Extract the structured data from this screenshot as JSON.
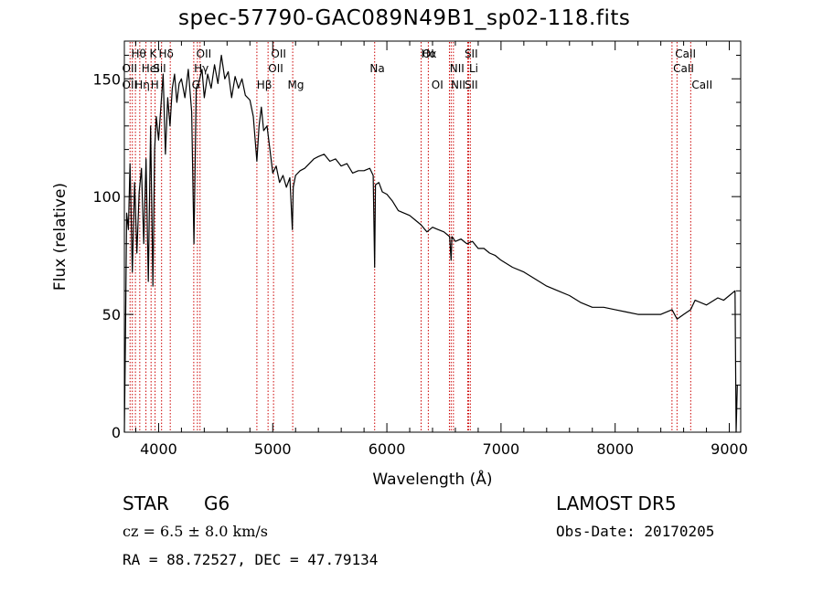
{
  "chart_data": {
    "type": "line",
    "title": "spec-57790-GAC089N49B1_sp02-118.fits",
    "xlabel": "Wavelength (Å)",
    "ylabel": "Flux (relative)",
    "xlim": [
      3700,
      9100
    ],
    "ylim": [
      0,
      1660
    ],
    "xticks": [
      4000,
      5000,
      6000,
      7000,
      8000,
      9000
    ],
    "yticks": [
      0,
      50,
      100,
      150
    ],
    "ytick_values": [
      0,
      500,
      1000,
      1500
    ],
    "series": [
      {
        "x": [
          3700,
          3710,
          3720,
          3735,
          3750,
          3770,
          3790,
          3810,
          3830,
          3850,
          3870,
          3890,
          3910,
          3930,
          3950,
          3965,
          3980,
          4000,
          4020,
          4040,
          4060,
          4080,
          4100,
          4120,
          4140,
          4160,
          4180,
          4200,
          4230,
          4260,
          4290,
          4310,
          4330,
          4350,
          4380,
          4400,
          4430,
          4460,
          4490,
          4520,
          4550,
          4580,
          4610,
          4640,
          4670,
          4700,
          4730,
          4760,
          4800,
          4830,
          4861,
          4880,
          4900,
          4920,
          4950,
          4980,
          5000,
          5030,
          5060,
          5090,
          5120,
          5150,
          5172,
          5180,
          5200,
          5240,
          5280,
          5320,
          5360,
          5400,
          5450,
          5500,
          5550,
          5600,
          5650,
          5700,
          5750,
          5800,
          5850,
          5880,
          5893,
          5900,
          5930,
          5960,
          6000,
          6050,
          6100,
          6150,
          6200,
          6250,
          6300,
          6350,
          6400,
          6450,
          6500,
          6550,
          6563,
          6570,
          6600,
          6650,
          6700,
          6750,
          6800,
          6850,
          6900,
          6950,
          7000,
          7100,
          7200,
          7300,
          7400,
          7500,
          7600,
          7700,
          7800,
          7900,
          8000,
          8100,
          8200,
          8300,
          8400,
          8498,
          8542,
          8600,
          8662,
          8700,
          8800,
          8900,
          8950,
          9000,
          9050,
          9060,
          9070
        ],
        "y": [
          0,
          400,
          930,
          860,
          1140,
          680,
          1060,
          760,
          1020,
          1120,
          800,
          1160,
          640,
          1300,
          620,
          1200,
          1340,
          1240,
          1380,
          1520,
          1180,
          1420,
          1300,
          1460,
          1520,
          1400,
          1480,
          1500,
          1420,
          1540,
          1360,
          800,
          1460,
          1480,
          1540,
          1420,
          1520,
          1460,
          1560,
          1480,
          1600,
          1500,
          1530,
          1420,
          1510,
          1460,
          1500,
          1430,
          1410,
          1340,
          1150,
          1300,
          1380,
          1280,
          1300,
          1180,
          1100,
          1130,
          1060,
          1090,
          1040,
          1080,
          860,
          1040,
          1090,
          1110,
          1120,
          1140,
          1160,
          1170,
          1180,
          1150,
          1160,
          1130,
          1140,
          1100,
          1110,
          1110,
          1120,
          1090,
          700,
          1050,
          1060,
          1020,
          1010,
          980,
          940,
          930,
          920,
          900,
          880,
          850,
          870,
          860,
          850,
          830,
          730,
          830,
          810,
          820,
          800,
          810,
          780,
          780,
          760,
          750,
          730,
          700,
          680,
          650,
          620,
          600,
          580,
          550,
          530,
          530,
          520,
          510,
          500,
          500,
          500,
          520,
          480,
          500,
          520,
          560,
          540,
          570,
          560,
          580,
          600,
          0,
          200
        ]
      }
    ],
    "lines": [
      "Hθ",
      "K",
      "Hδ",
      "OII",
      "OII",
      "Hα",
      "SII",
      "CaII",
      "OII",
      "HeI",
      "SiI",
      "Hγ",
      "OII",
      "NII",
      "Li",
      "CaII",
      "OII",
      "Hη",
      "H",
      "G",
      "Hβ",
      "Mg",
      "Na",
      "OI",
      "OI",
      "NII",
      "SII",
      "CaII"
    ],
    "grid": false,
    "legend": "none"
  },
  "info": {
    "objtype": "STAR",
    "subclass": "G6",
    "survey": "LAMOST DR5",
    "velocity": "cz = 6.5 ± 8.0 km/s",
    "obsdate": "Obs-Date: 20170205",
    "coords": "RA =  88.72527, DEC =  47.79134"
  }
}
